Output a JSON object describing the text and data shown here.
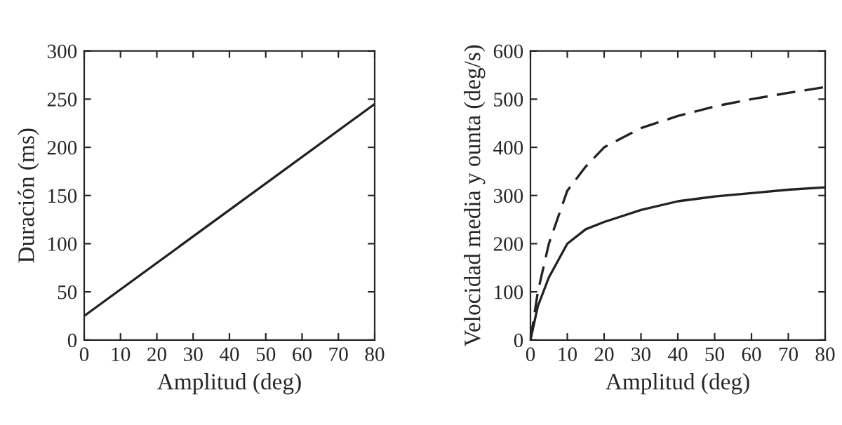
{
  "chart_data": [
    {
      "type": "line",
      "xlabel": "Amplitud (deg)",
      "ylabel": "Duración (ms)",
      "x": [
        0,
        80
      ],
      "series": [
        {
          "color": "#222222",
          "values": [
            25,
            245
          ],
          "line_style": "solid"
        }
      ],
      "xlim": [
        0,
        80
      ],
      "ylim": [
        0,
        300
      ],
      "xticks": [
        0,
        10,
        20,
        30,
        40,
        50,
        60,
        70,
        80
      ],
      "yticks": [
        0,
        50,
        100,
        150,
        200,
        250,
        300
      ],
      "marker": "none",
      "grid": false,
      "legend": false
    },
    {
      "type": "line",
      "xlabel": "Amplitud (deg)",
      "ylabel": "Velocidad media y ounta (deg/s)",
      "x": [
        0,
        2,
        5,
        10,
        15,
        20,
        30,
        40,
        50,
        60,
        70,
        80
      ],
      "series": [
        {
          "color": "#222222",
          "line_style": "solid",
          "values": [
            0,
            70,
            130,
            200,
            230,
            245,
            270,
            288,
            298,
            305,
            312,
            317
          ]
        },
        {
          "color": "#222222",
          "line_style": "dashed",
          "values": [
            0,
            100,
            200,
            310,
            360,
            400,
            440,
            465,
            485,
            500,
            513,
            525
          ]
        }
      ],
      "xlim": [
        0,
        80
      ],
      "ylim": [
        0,
        600
      ],
      "xticks": [
        0,
        10,
        20,
        30,
        40,
        50,
        60,
        70,
        80
      ],
      "yticks": [
        0,
        100,
        200,
        300,
        400,
        500,
        600
      ],
      "marker": "none",
      "grid": false,
      "legend": false
    }
  ]
}
